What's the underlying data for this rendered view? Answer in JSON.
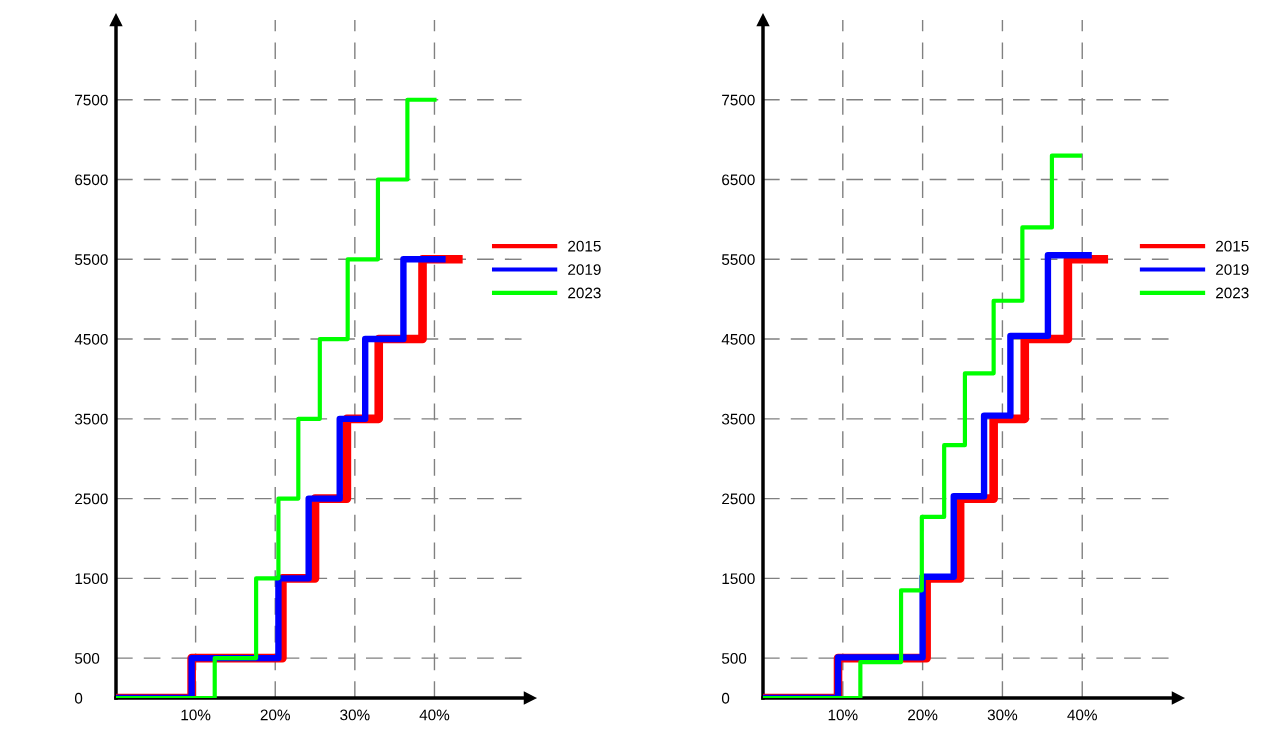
{
  "chart_data": [
    {
      "type": "step",
      "xlim": [
        0,
        52
      ],
      "ylim": [
        0,
        8500
      ],
      "xticks": [
        {
          "value": 10,
          "label": "10%"
        },
        {
          "value": 20,
          "label": "20%"
        },
        {
          "value": 30,
          "label": "30%"
        },
        {
          "value": 40,
          "label": "40%"
        }
      ],
      "yticks": [
        0,
        500,
        1500,
        2500,
        3500,
        4500,
        5500,
        6500,
        7500
      ],
      "grid": true,
      "legend": "right",
      "line_style": "solid",
      "marker": "none",
      "series": [
        {
          "name": "2015",
          "color": "#ff0000",
          "x": [
            0,
            9.5,
            20.9,
            25,
            29,
            33,
            38.5,
            43
          ],
          "values": [
            0,
            500,
            1500,
            2500,
            3500,
            4500,
            5500,
            5500
          ]
        },
        {
          "name": "2019",
          "color": "#0000ff",
          "x": [
            0,
            9.5,
            20.4,
            24.2,
            28.1,
            31.3,
            36.1,
            41
          ],
          "values": [
            0,
            500,
            1500,
            2500,
            3500,
            4500,
            5500,
            5500
          ]
        },
        {
          "name": "2023",
          "color": "#00ff00",
          "x": [
            0,
            12.4,
            17.6,
            20.4,
            22.9,
            25.6,
            29.1,
            32.9,
            36.6,
            40
          ],
          "values": [
            0,
            500,
            1500,
            2500,
            3500,
            4500,
            5500,
            6500,
            7500,
            7500
          ]
        }
      ]
    },
    {
      "type": "step",
      "xlim": [
        0,
        52
      ],
      "ylim": [
        0,
        8500
      ],
      "xticks": [
        {
          "value": 10,
          "label": "10%"
        },
        {
          "value": 20,
          "label": "20%"
        },
        {
          "value": 30,
          "label": "30%"
        },
        {
          "value": 40,
          "label": "40%"
        }
      ],
      "yticks": [
        0,
        500,
        1500,
        2500,
        3500,
        4500,
        5500,
        6500,
        7500
      ],
      "grid": true,
      "legend": "right",
      "line_style": "solid",
      "marker": "none",
      "series": [
        {
          "name": "2015",
          "color": "#ff0000",
          "x": [
            0,
            9.4,
            20.5,
            24.7,
            28.9,
            32.8,
            38.2,
            42.7
          ],
          "values": [
            0,
            500,
            1500,
            2500,
            3500,
            4500,
            5500,
            5500
          ]
        },
        {
          "name": "2019",
          "color": "#0000ff",
          "x": [
            0,
            9.4,
            20,
            23.9,
            27.7,
            31,
            35.7,
            40.8
          ],
          "values": [
            0,
            510,
            1520,
            2530,
            3540,
            4540,
            5550,
            5550
          ]
        },
        {
          "name": "2023",
          "color": "#00ff00",
          "x": [
            0,
            12.2,
            17.3,
            19.9,
            22.7,
            25.3,
            28.9,
            32.5,
            36.2,
            39.7
          ],
          "values": [
            0,
            450,
            1350,
            2270,
            3170,
            4070,
            4980,
            5900,
            6800,
            6800
          ]
        }
      ]
    }
  ]
}
